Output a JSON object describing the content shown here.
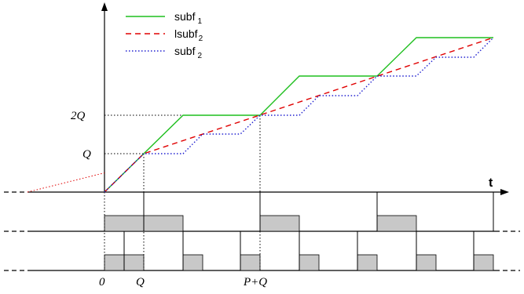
{
  "legend": {
    "items": [
      {
        "base": "subf",
        "sub": "1",
        "color": "#1fbf1f",
        "style": "solid"
      },
      {
        "base": "lsubf",
        "sub": "2",
        "color": "#e00000",
        "style": "dashed"
      },
      {
        "base": "subf",
        "sub": "2",
        "color": "#2020d0",
        "style": "dotted"
      }
    ]
  },
  "axis": {
    "t_label": "t",
    "y_tick_2q": "2Q",
    "y_tick_q": "Q",
    "x_tick_0": "0",
    "x_tick_q": "Q",
    "x_tick_pq": "P+Q"
  },
  "colors": {
    "subf1": "#1fbf1f",
    "lsubf2": "#e00000",
    "subf2": "#2020d0",
    "block_fill": "#c8c8c8"
  }
}
